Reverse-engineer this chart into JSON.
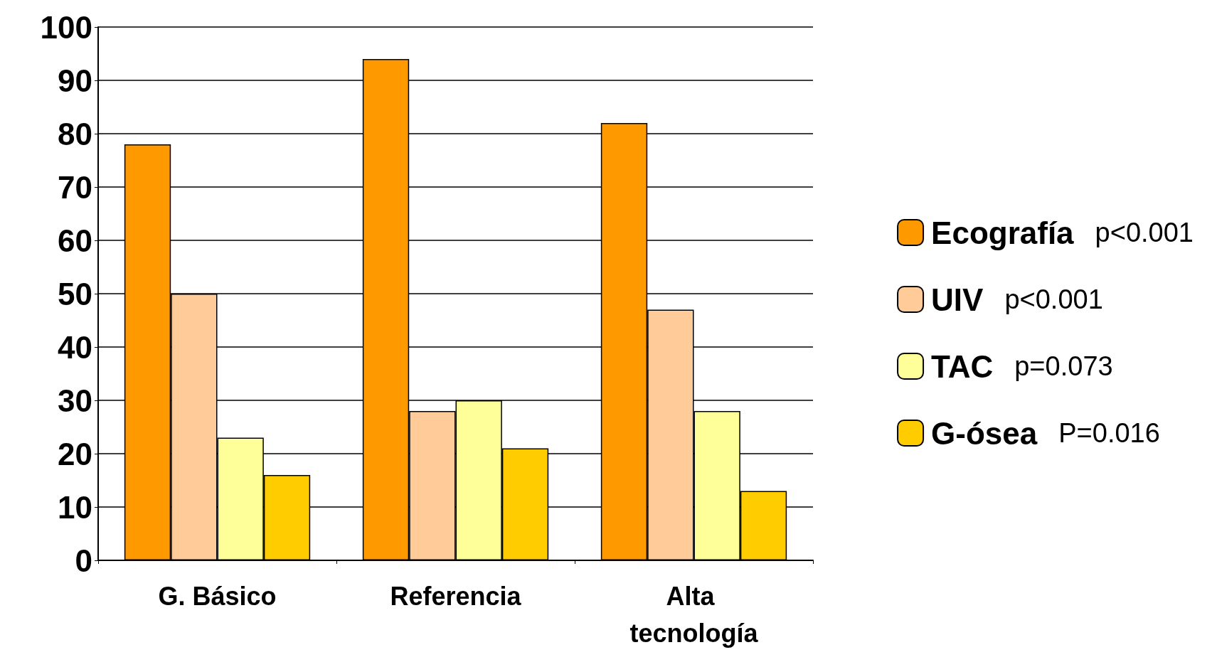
{
  "chart_data": {
    "type": "bar",
    "categories": [
      "G. Básico",
      "Referencia",
      "Alta tecnología"
    ],
    "series": [
      {
        "name": "Ecografía",
        "color": "#ff9900",
        "values": [
          78,
          94,
          82
        ]
      },
      {
        "name": "UIV",
        "color": "#ffcc99",
        "values": [
          50,
          28,
          47
        ]
      },
      {
        "name": "TAC",
        "color": "#ffff99",
        "values": [
          23,
          30,
          28
        ]
      },
      {
        "name": "G-ósea",
        "color": "#ffcc00",
        "values": [
          16,
          21,
          13
        ]
      }
    ],
    "annotations": [
      "p<0.001",
      "p<0.001",
      "p=0.073",
      "P=0.016"
    ],
    "ylim": [
      0,
      100
    ],
    "yticks": [
      0,
      10,
      20,
      30,
      40,
      50,
      60,
      70,
      80,
      90,
      100
    ],
    "grid": "y",
    "legend": "right"
  }
}
